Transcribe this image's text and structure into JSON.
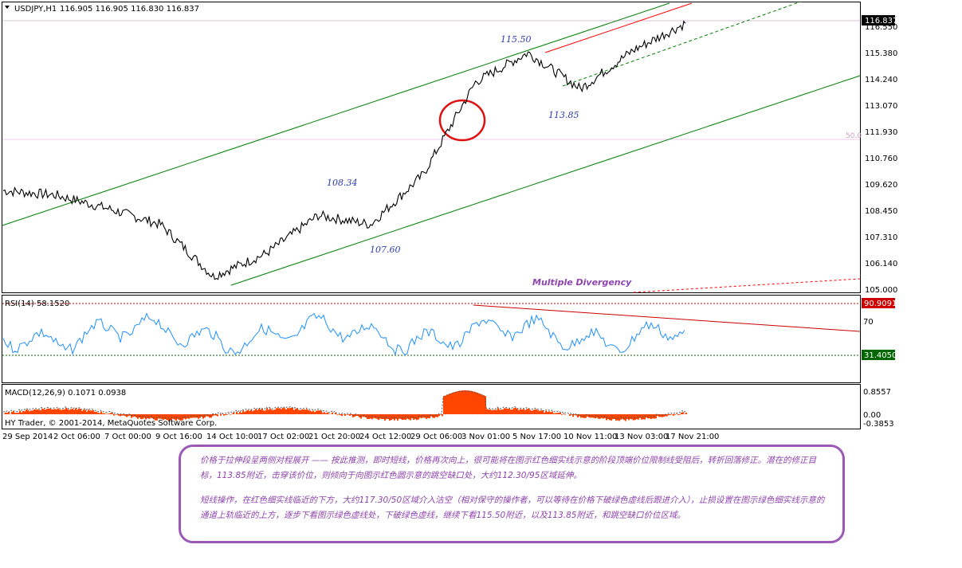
{
  "header": {
    "symbol": "USDJPY,H1",
    "ohlc": "116.905 116.905 116.830 116.837"
  },
  "price_axis": {
    "ticks": [
      "116.550",
      "115.380",
      "114.240",
      "113.070",
      "111.930",
      "110.760",
      "109.620",
      "108.450",
      "107.310",
      "106.140",
      "105.000"
    ],
    "current_price": "116.837",
    "fib_label": "50.0"
  },
  "annotations": {
    "a1": "115.50",
    "a2": "113.85",
    "a3": "108.34",
    "a4": "107.60",
    "divergence": "Multiple Divergency"
  },
  "rsi": {
    "label": "RSI(14) 58.1520",
    "ticks": [
      "70"
    ],
    "upper_level": "90.9091",
    "lower_level": "31.4050"
  },
  "macd": {
    "label": "MACD(12,26,9) 0.1071 0.0938",
    "ticks": [
      "0.8557",
      "0.00",
      "-0.3853"
    ],
    "broker": "HY Trader, © 2001-2014, MetaQuotes Software Corp."
  },
  "time_axis": [
    "29 Sep 2014",
    "2 Oct 06:00",
    "7 Oct 00:00",
    "9 Oct 16:00",
    "14 Oct 10:00",
    "17 Oct 02:00",
    "21 Oct 20:00",
    "24 Oct 12:00",
    "29 Oct 06:00",
    "3 Nov 01:00",
    "5 Nov 17:00",
    "10 Nov 11:00",
    "13 Nov 03:00",
    "17 Nov 21:00"
  ],
  "note": {
    "p1": "价格于拉伸段呈两侧对程展开 —— 按此推测，即时短线，价格再次向上，很可能将在图示红色细实线示意的阶段顶端价位限制线受阻后，转折回落修正。潜在的修正目标，113.85附近，击穿该价位，则倾向于向图示红色圆示意的跳空缺口处，大约112.30/95区域延伸。",
    "p2": "短线操作，在红色细实线临近的下方，大约117.30/50区域介入沽空（相对保守的操作者，可以等待在价格下破绿色虚线后跟进介入），止损设置在图示绿色细实线示意的通道上轨临近的上方，逐步下看图示绿色虚线处，下破绿色虚线，继续下看115.50附近，以及113.85附近，和跳空缺口价位区域。"
  },
  "chart_data": {
    "type": "line",
    "title": "USDJPY,H1",
    "x": [
      "29 Sep 2014",
      "2 Oct 06:00",
      "7 Oct 00:00",
      "9 Oct 16:00",
      "14 Oct 10:00",
      "17 Oct 02:00",
      "21 Oct 20:00",
      "24 Oct 12:00",
      "29 Oct 06:00",
      "3 Nov 01:00",
      "5 Nov 17:00",
      "10 Nov 11:00",
      "13 Nov 03:00",
      "17 Nov 21:00"
    ],
    "series": [
      {
        "values": [
          109.4,
          109.2,
          108.6,
          107.9,
          105.6,
          106.6,
          108.3,
          107.9,
          110.1,
          114.2,
          115.5,
          113.9,
          115.6,
          116.8
        ]
      }
    ],
    "ylim": [
      105.0,
      117.2
    ],
    "grid": false,
    "colors": {
      "price": "#000000",
      "channel": "#008000",
      "resistance": "#ff0000",
      "rsi": "#1e90ff",
      "macd": "#ff4500"
    }
  }
}
